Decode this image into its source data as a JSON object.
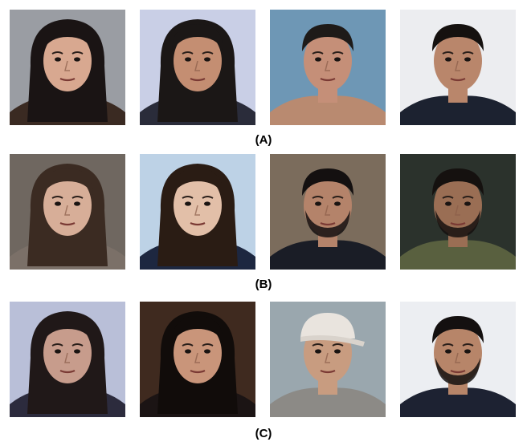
{
  "figure": {
    "rows": [
      {
        "label": "(A)",
        "tiles": [
          {
            "bg": "#9a9da3",
            "skin": "#d8a890",
            "hair": "#1a1414",
            "clothes": "#3a2a22",
            "style": "long"
          },
          {
            "bg": "#c9cfe6",
            "skin": "#c48e72",
            "hair": "#1b1716",
            "clothes": "#2a2c3a",
            "style": "long"
          },
          {
            "bg": "#6e97b5",
            "skin": "#c58f78",
            "hair": "#1e1a18",
            "clothes": "#b98a70",
            "style": "short"
          },
          {
            "bg": "#ecedf0",
            "skin": "#b9866b",
            "hair": "#15110f",
            "clothes": "#1c2230",
            "style": "short"
          }
        ]
      },
      {
        "label": "(B)",
        "tiles": [
          {
            "bg": "#6f6760",
            "skin": "#d7ae98",
            "hair": "#3b2b22",
            "clothes": "#7b7068",
            "style": "long"
          },
          {
            "bg": "#bdd2e6",
            "skin": "#e2bfa8",
            "hair": "#2a1c14",
            "clothes": "#1d2740",
            "style": "long"
          },
          {
            "bg": "#7b6c5c",
            "skin": "#b4836a",
            "hair": "#141010",
            "clothes": "#1a1d26",
            "style": "beard"
          },
          {
            "bg": "#2b322c",
            "skin": "#9a6e54",
            "hair": "#15110f",
            "clothes": "#59603f",
            "style": "beard"
          }
        ]
      },
      {
        "label": "(C)",
        "tiles": [
          {
            "bg": "#b9bfd8",
            "skin": "#c79c8c",
            "hair": "#201818",
            "clothes": "#2c2b3d",
            "style": "long"
          },
          {
            "bg": "#3f2a1f",
            "skin": "#c9957a",
            "hair": "#110c0a",
            "clothes": "#1b1414",
            "style": "long"
          },
          {
            "bg": "#9aa7ae",
            "skin": "#c89c80",
            "hair": "#e9e4de",
            "clothes": "#8c8a86",
            "style": "cap"
          },
          {
            "bg": "#eceef2",
            "skin": "#b78569",
            "hair": "#141010",
            "clothes": "#1d2232",
            "style": "beard"
          }
        ]
      }
    ]
  }
}
